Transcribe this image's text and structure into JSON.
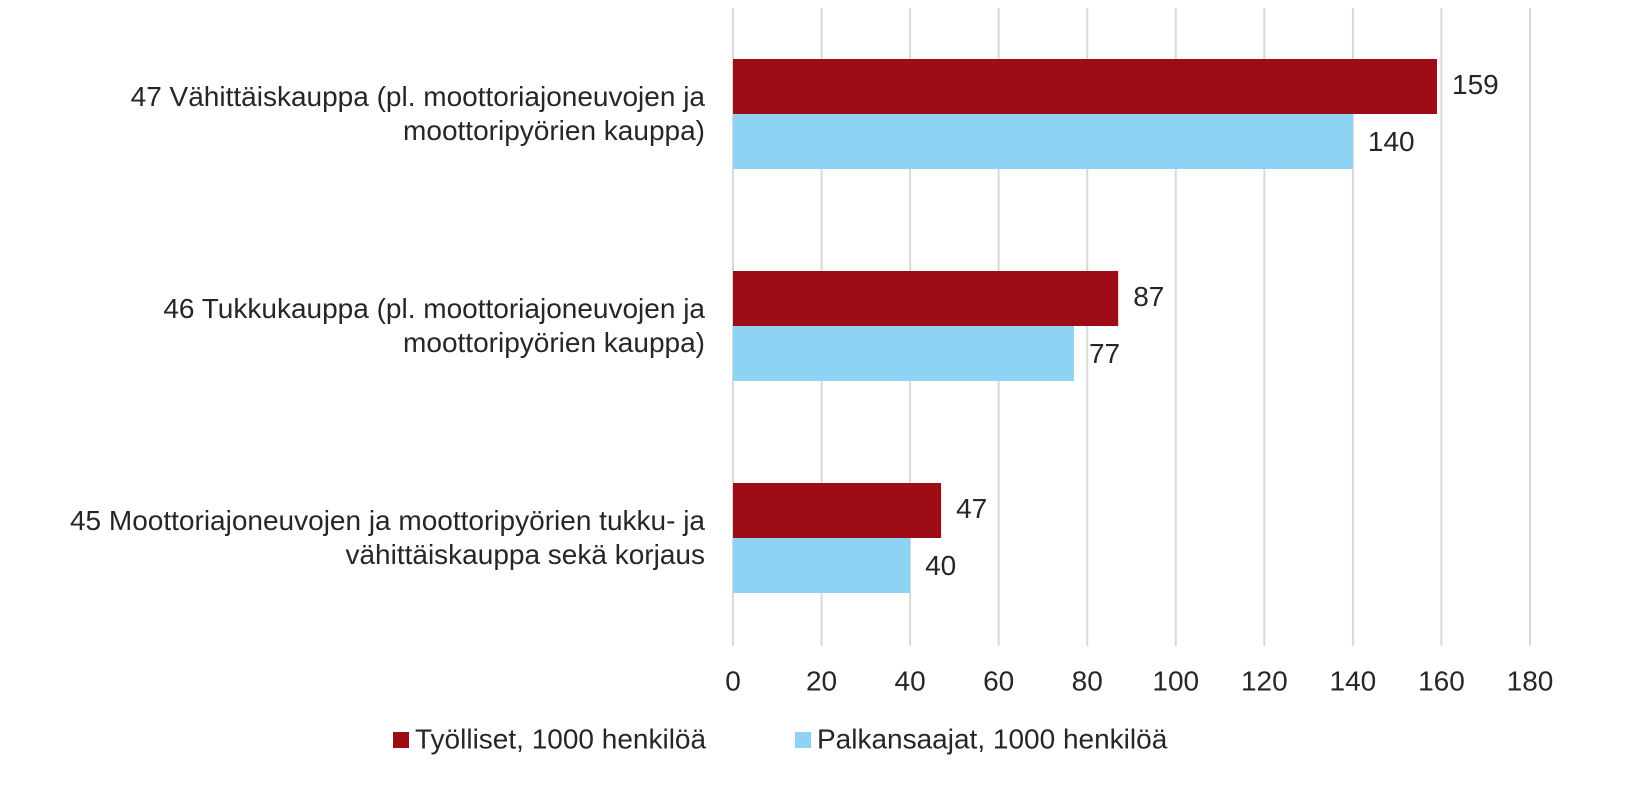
{
  "chart_data": {
    "type": "bar",
    "orientation": "horizontal",
    "categories": [
      "47 Vähittäiskauppa (pl. moottoriajoneuvojen ja\nmoottoripyörien kauppa)",
      "46 Tukkukauppa (pl. moottoriajoneuvojen ja\nmoottoripyörien kauppa)",
      "45 Moottoriajoneuvojen ja moottoripyörien tukku- ja\nvähittäiskauppa sekä korjaus"
    ],
    "series": [
      {
        "name": "Työlliset, 1000 henkilöä",
        "color": "#9e0c15",
        "values": [
          159,
          87,
          47
        ]
      },
      {
        "name": "Palkansaajat, 1000 henkilöä",
        "color": "#8fd3f4",
        "values": [
          140,
          77,
          40
        ]
      }
    ],
    "xlim": [
      0,
      180
    ],
    "xticks": [
      0,
      20,
      40,
      60,
      80,
      100,
      120,
      140,
      160,
      180
    ],
    "grid": true,
    "legend": "bottom"
  }
}
